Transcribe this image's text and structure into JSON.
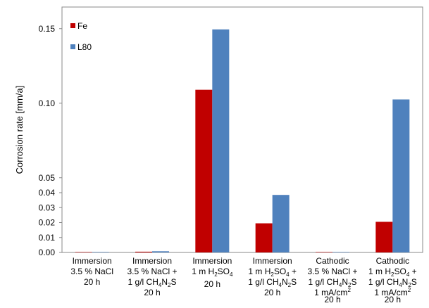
{
  "chart_data": {
    "type": "bar",
    "ylabel": "Corrosion rate [mm/a]",
    "xlabel": "",
    "ylim": [
      0,
      0.16
    ],
    "y_ticks": [
      "0.00",
      "0.01",
      "0.02",
      "0.03",
      "0.04",
      "0.05",
      "0.10",
      "0.15"
    ],
    "legend_position": "top-left",
    "grid": false,
    "categories": [
      [
        {
          "t": "Immersion"
        },
        {
          "t": "3.5 % NaCl"
        },
        {
          "t": "20 h"
        }
      ],
      [
        {
          "t": "Immersion"
        },
        {
          "t": "3.5 % NaCl +"
        },
        {
          "t": "1 g/l CH",
          "s": "4",
          "m": "N",
          "s2": "2",
          "e": "S"
        },
        {
          "t": "20 h"
        }
      ],
      [
        {
          "t": "Immersion"
        },
        {
          "t": "1 m H",
          "s": "2",
          "m": "SO",
          "s2": "4",
          "e": ""
        },
        {
          "t": "20 h"
        }
      ],
      [
        {
          "t": "Immersion"
        },
        {
          "t": "1 m H",
          "s": "2",
          "m": "SO",
          "s2": "4",
          "e": " +"
        },
        {
          "t": "1 g/l CH",
          "s": "4",
          "m": "N",
          "s2": "2",
          "e": "S"
        },
        {
          "t": "20 h"
        }
      ],
      [
        {
          "t": "Cathodic"
        },
        {
          "t": "3.5 % NaCl +"
        },
        {
          "t": "1 g/l CH",
          "s": "4",
          "m": "N",
          "s2": "2",
          "e": "S"
        },
        {
          "t": "1 mA/cm",
          "sup": "2"
        },
        {
          "t": "20 h"
        }
      ],
      [
        {
          "t": "Cathodic"
        },
        {
          "t": "1 m H",
          "s": "2",
          "m": "SO",
          "s2": "4",
          "e": " +"
        },
        {
          "t": "1 g/l CH",
          "s": "4",
          "m": "N",
          "s2": "2",
          "e": "S"
        },
        {
          "t": "1 mA/cm",
          "sup": "2"
        },
        {
          "t": "20 h"
        }
      ]
    ],
    "series": [
      {
        "name": "Fe",
        "color": "#c00000",
        "values": [
          0.0,
          0.0005,
          0.109,
          0.0195,
          0.0,
          0.0205
        ]
      },
      {
        "name": "L80",
        "color": "#4f81bd",
        "values": [
          0.0003,
          0.0008,
          0.1495,
          0.0385,
          0.0,
          0.1025
        ]
      }
    ]
  }
}
